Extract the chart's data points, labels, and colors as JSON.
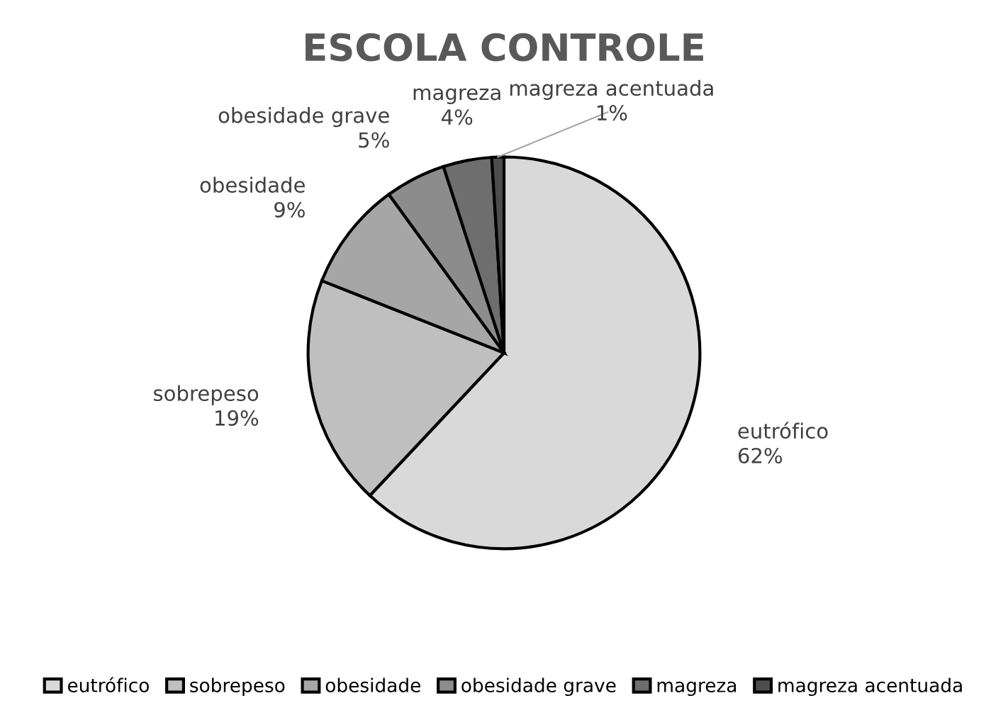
{
  "chart_data": {
    "type": "pie",
    "title": "ESCOLA CONTROLE",
    "categories": [
      "eutrófico",
      "sobrepeso",
      "obesidade",
      "obesidade grave",
      "magreza",
      "magreza acentuada"
    ],
    "values": [
      62,
      19,
      9,
      5,
      4,
      1
    ],
    "value_labels": [
      "62%",
      "19%",
      "9%",
      "5%",
      "4%",
      "1%"
    ],
    "colors": [
      "#d9d9d9",
      "#bfbfbf",
      "#a6a6a6",
      "#8c8c8c",
      "#6e6e6e",
      "#4d4d4d"
    ],
    "legend": "bottom"
  }
}
